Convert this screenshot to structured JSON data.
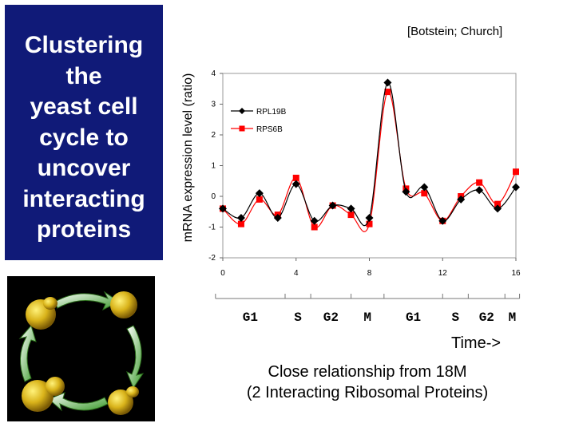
{
  "title_lines": [
    "Clustering",
    "the",
    "yeast cell",
    "cycle to",
    "uncover",
    "interacting",
    "proteins"
  ],
  "source": "[Botstein; Church]",
  "time_label": "Time->",
  "caption_lines": [
    "Close relationship from 18M",
    "(2 Interacting Ribosomal Proteins)"
  ],
  "phases": [
    "G1",
    "S",
    "G2",
    "M",
    "G1",
    "S",
    "G2",
    "M"
  ],
  "colors": {
    "title_bg": "#101a78",
    "series1": "#000000",
    "series2": "#ff0000"
  },
  "chart_data": {
    "type": "line",
    "ylabel": "mRNA expression level (ratio)",
    "xlabel": "",
    "xlim": [
      0,
      16
    ],
    "ylim": [
      -2,
      4
    ],
    "x_ticks": [
      0,
      4,
      8,
      12,
      16
    ],
    "y_ticks": [
      -2,
      -1,
      0,
      1,
      2,
      3,
      4
    ],
    "x": [
      0,
      1,
      2,
      3,
      4,
      5,
      6,
      7,
      8,
      9,
      10,
      11,
      12,
      13,
      14,
      15,
      16
    ],
    "legend_position": "top-left",
    "series": [
      {
        "name": "RPL19B",
        "marker": "diamond",
        "color": "#000000",
        "values": [
          -0.4,
          -0.7,
          0.1,
          -0.7,
          0.4,
          -0.8,
          -0.3,
          -0.4,
          -0.7,
          3.7,
          0.15,
          0.3,
          -0.8,
          -0.1,
          0.2,
          -0.4,
          0.3
        ]
      },
      {
        "name": "RPS6B",
        "marker": "square",
        "color": "#ff0000",
        "values": [
          -0.4,
          -0.9,
          -0.1,
          -0.6,
          0.6,
          -1.0,
          -0.3,
          -0.6,
          -0.9,
          3.4,
          0.25,
          0.1,
          -0.8,
          0.0,
          0.45,
          -0.25,
          0.8
        ]
      }
    ]
  }
}
